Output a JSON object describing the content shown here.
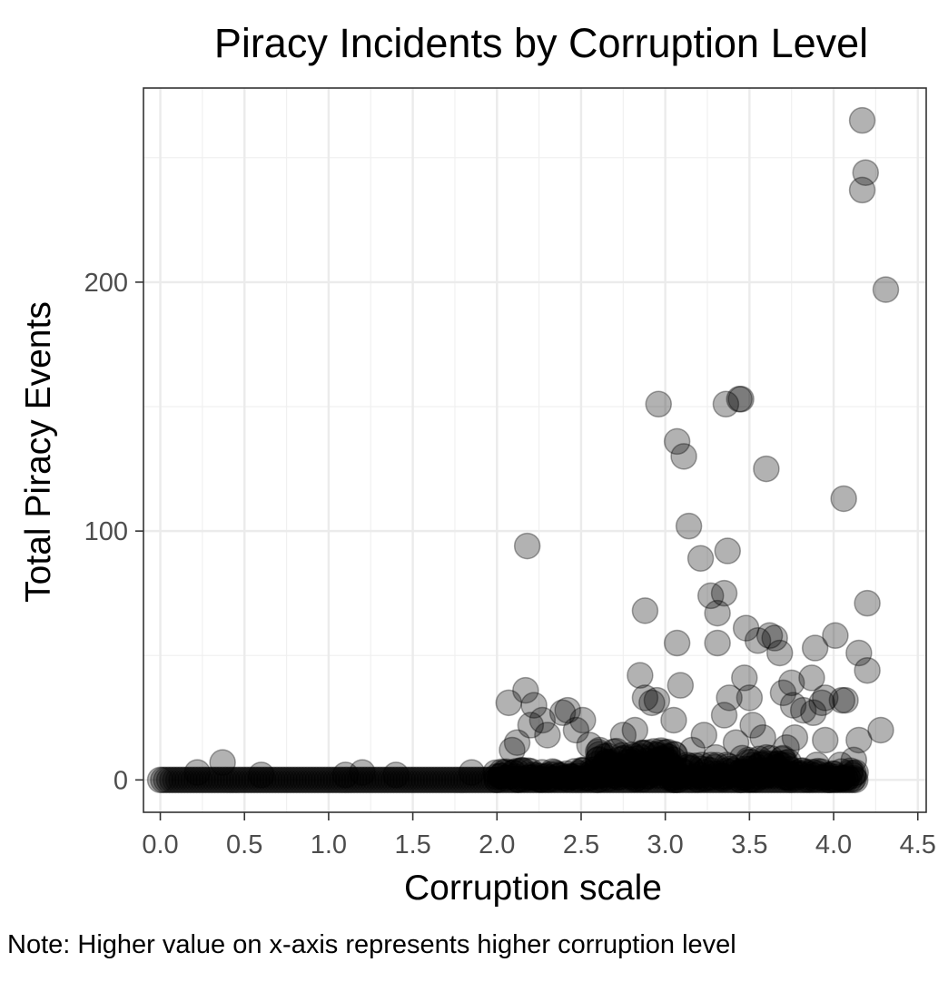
{
  "chart_data": {
    "type": "scatter",
    "title": "Piracy Incidents by Corruption Level",
    "xlabel": "Corruption scale",
    "ylabel": "Total Piracy Events",
    "note": "Note: Higher value on x-axis represents higher corruption level",
    "xlim": [
      -0.1,
      4.55
    ],
    "ylim": [
      -13,
      278
    ],
    "x_ticks": [
      {
        "value": 0.0,
        "label": "0.0"
      },
      {
        "value": 0.5,
        "label": "0.5"
      },
      {
        "value": 1.0,
        "label": "1.0"
      },
      {
        "value": 1.5,
        "label": "1.5"
      },
      {
        "value": 2.0,
        "label": "2.0"
      },
      {
        "value": 2.5,
        "label": "2.5"
      },
      {
        "value": 3.0,
        "label": "3.0"
      },
      {
        "value": 3.5,
        "label": "3.5"
      },
      {
        "value": 4.0,
        "label": "4.0"
      },
      {
        "value": 4.5,
        "label": "4.5"
      }
    ],
    "y_ticks": [
      {
        "value": 0,
        "label": "0"
      },
      {
        "value": 100,
        "label": "100"
      },
      {
        "value": 200,
        "label": "200"
      }
    ],
    "grid": true,
    "point_color": "#000000",
    "point_opacity": 0.3,
    "points": [
      [
        4.17,
        265
      ],
      [
        4.19,
        244
      ],
      [
        4.17,
        237
      ],
      [
        4.31,
        197
      ],
      [
        2.96,
        151
      ],
      [
        3.36,
        151
      ],
      [
        3.44,
        153
      ],
      [
        3.45,
        153
      ],
      [
        3.07,
        136
      ],
      [
        3.11,
        130
      ],
      [
        3.6,
        125
      ],
      [
        4.06,
        113
      ],
      [
        3.14,
        102
      ],
      [
        2.18,
        94
      ],
      [
        3.21,
        89
      ],
      [
        3.37,
        92
      ],
      [
        3.27,
        74
      ],
      [
        3.35,
        75
      ],
      [
        3.31,
        67
      ],
      [
        2.88,
        68
      ],
      [
        4.2,
        71
      ],
      [
        3.48,
        61
      ],
      [
        3.55,
        56
      ],
      [
        3.62,
        58
      ],
      [
        3.65,
        57
      ],
      [
        3.68,
        51
      ],
      [
        3.07,
        55
      ],
      [
        3.31,
        55
      ],
      [
        4.01,
        58
      ],
      [
        3.89,
        53
      ],
      [
        4.15,
        51
      ],
      [
        4.2,
        44
      ],
      [
        2.85,
        42
      ],
      [
        3.09,
        38
      ],
      [
        3.47,
        41
      ],
      [
        3.75,
        39
      ],
      [
        3.87,
        41
      ],
      [
        2.07,
        31
      ],
      [
        2.17,
        36
      ],
      [
        2.22,
        30
      ],
      [
        2.39,
        27
      ],
      [
        2.42,
        28
      ],
      [
        2.88,
        33
      ],
      [
        2.92,
        31
      ],
      [
        2.95,
        32
      ],
      [
        3.38,
        33
      ],
      [
        3.5,
        33
      ],
      [
        3.7,
        35
      ],
      [
        3.76,
        30
      ],
      [
        3.82,
        28
      ],
      [
        3.93,
        31
      ],
      [
        3.95,
        33
      ],
      [
        4.05,
        32
      ],
      [
        4.07,
        32
      ],
      [
        2.47,
        20
      ],
      [
        2.51,
        24
      ],
      [
        2.2,
        22
      ],
      [
        2.27,
        24
      ],
      [
        3.05,
        24
      ],
      [
        3.35,
        26
      ],
      [
        3.52,
        22
      ],
      [
        3.88,
        27
      ],
      [
        4.28,
        20
      ],
      [
        4.15,
        16
      ],
      [
        3.95,
        16
      ],
      [
        2.3,
        18
      ],
      [
        2.12,
        15
      ],
      [
        2.09,
        12
      ],
      [
        2.55,
        14
      ],
      [
        2.75,
        18
      ],
      [
        2.82,
        20
      ],
      [
        3.23,
        18
      ],
      [
        3.58,
        17
      ],
      [
        3.77,
        17
      ],
      [
        3.16,
        12
      ],
      [
        3.42,
        15
      ],
      [
        3.72,
        13
      ],
      [
        4.12,
        8
      ],
      [
        4.04,
        6
      ],
      [
        0.37,
        7
      ],
      [
        0.22,
        3
      ],
      [
        0.6,
        2
      ],
      [
        1.1,
        2
      ],
      [
        1.2,
        3
      ],
      [
        1.4,
        2
      ],
      [
        1.85,
        3
      ],
      [
        2.6,
        8
      ],
      [
        2.8,
        10
      ],
      [
        3.0,
        11
      ],
      [
        3.3,
        9
      ],
      [
        3.6,
        9
      ],
      [
        3.9,
        6
      ]
    ],
    "dense_bands": [
      {
        "x_start": 0.0,
        "x_end": 2.0,
        "y_max": 1
      },
      {
        "x_start": 2.0,
        "x_end": 2.6,
        "y_max": 4
      },
      {
        "x_start": 2.6,
        "x_end": 3.05,
        "y_max": 12
      },
      {
        "x_start": 3.05,
        "x_end": 3.45,
        "y_max": 6
      },
      {
        "x_start": 3.45,
        "x_end": 3.75,
        "y_max": 9
      },
      {
        "x_start": 3.75,
        "x_end": 4.13,
        "y_max": 4
      }
    ]
  }
}
